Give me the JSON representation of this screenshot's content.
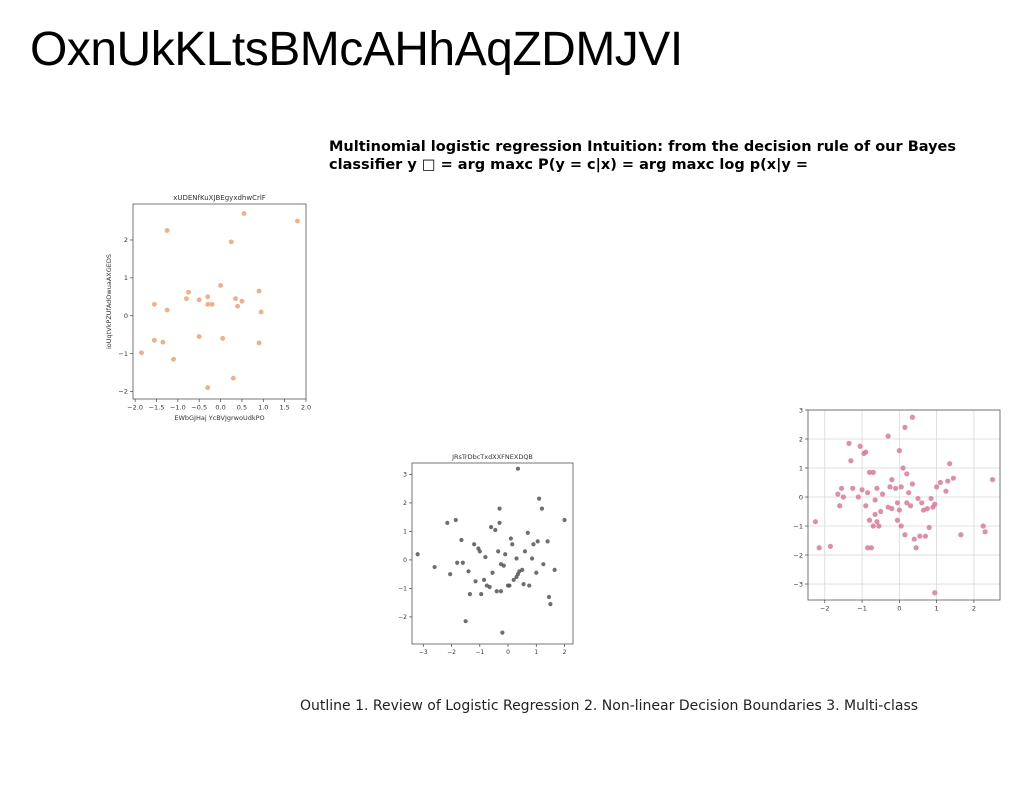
{
  "slide": {
    "title": "OxnUkKLtsBMcAHhAqZDMJVI",
    "heading": "Multinomial logistic regression Intuition: from the decision rule of our Bayes classifier y □ = arg maxc P(y = c|x) = arg maxc log p(x|y =",
    "outline": "Outline 1. Review of Logistic Regression 2. Non-linear Decision Boundaries 3. Multi-class"
  },
  "chart_data": [
    {
      "type": "scatter",
      "title": "xUDENfKuXJBEgyxdhwCrlF",
      "xlabel": "EWbGJHaj YcBVJgrwoUdkPO",
      "ylabel": "ioUqtVkPZUfAdOwuaAXGEDS",
      "color": "#f0a070",
      "xlim": [
        -2.05,
        2.0
      ],
      "ylim": [
        -2.2,
        2.95
      ],
      "xticks": [
        -2.0,
        -1.5,
        -1.0,
        -0.5,
        0.0,
        0.5,
        1.0,
        1.5,
        2.0
      ],
      "xtick_labels": [
        "−2.0",
        "−1.5",
        "−1.0",
        "−0.5",
        "0.0",
        "0.5",
        "1.0",
        "1.5",
        "2.0"
      ],
      "yticks": [
        -2,
        -1,
        0,
        1,
        2
      ],
      "ytick_labels": [
        "−2",
        "−1",
        "0",
        "1",
        "2"
      ],
      "grid": false,
      "points": [
        [
          -1.85,
          -0.98
        ],
        [
          -1.55,
          -0.65
        ],
        [
          -1.55,
          0.3
        ],
        [
          -1.35,
          -0.7
        ],
        [
          -1.25,
          2.25
        ],
        [
          -1.25,
          0.15
        ],
        [
          -1.1,
          -1.15
        ],
        [
          -0.8,
          0.45
        ],
        [
          -0.75,
          0.62
        ],
        [
          -0.5,
          -0.55
        ],
        [
          -0.5,
          0.42
        ],
        [
          -0.3,
          -1.9
        ],
        [
          -0.3,
          0.5
        ],
        [
          -0.3,
          0.3
        ],
        [
          -0.2,
          0.3
        ],
        [
          0.0,
          0.8
        ],
        [
          0.05,
          -0.6
        ],
        [
          0.25,
          1.95
        ],
        [
          0.3,
          -1.65
        ],
        [
          0.35,
          0.45
        ],
        [
          0.4,
          0.25
        ],
        [
          0.5,
          0.38
        ],
        [
          0.55,
          2.7
        ],
        [
          0.9,
          -0.72
        ],
        [
          0.9,
          0.65
        ],
        [
          0.95,
          0.1
        ],
        [
          1.8,
          2.5
        ]
      ]
    },
    {
      "type": "scatter",
      "title": "JRsTrDbcTxdXXFNEXDQB",
      "xlabel": "",
      "ylabel": "",
      "color": "#555555",
      "xlim": [
        -3.4,
        2.3
      ],
      "ylim": [
        -2.95,
        3.4
      ],
      "xticks": [
        -3,
        -2,
        -1,
        0,
        1,
        2
      ],
      "xtick_labels": [
        "−3",
        "−2",
        "−1",
        "0",
        "1",
        "2"
      ],
      "yticks": [
        -2,
        -1,
        0,
        1,
        2,
        3
      ],
      "ytick_labels": [
        "−2",
        "−1",
        "0",
        "1",
        "2",
        "3"
      ],
      "grid": false,
      "points": [
        [
          -3.2,
          0.2
        ],
        [
          -2.6,
          -0.25
        ],
        [
          -2.15,
          1.3
        ],
        [
          -2.05,
          -0.5
        ],
        [
          -1.85,
          1.4
        ],
        [
          -1.8,
          -0.1
        ],
        [
          -1.65,
          0.7
        ],
        [
          -1.6,
          -0.1
        ],
        [
          -1.5,
          -2.15
        ],
        [
          -1.4,
          -0.4
        ],
        [
          -1.35,
          -1.2
        ],
        [
          -1.2,
          0.55
        ],
        [
          -1.15,
          -0.75
        ],
        [
          -1.05,
          0.4
        ],
        [
          -1.0,
          0.3
        ],
        [
          -0.95,
          -1.2
        ],
        [
          -0.85,
          -0.7
        ],
        [
          -0.8,
          0.1
        ],
        [
          -0.75,
          -0.9
        ],
        [
          -0.65,
          -0.95
        ],
        [
          -0.6,
          1.15
        ],
        [
          -0.55,
          -0.45
        ],
        [
          -0.45,
          1.05
        ],
        [
          -0.4,
          -1.1
        ],
        [
          -0.35,
          0.3
        ],
        [
          -0.3,
          1.8
        ],
        [
          -0.3,
          1.3
        ],
        [
          -0.25,
          -1.1
        ],
        [
          -0.25,
          -0.15
        ],
        [
          -0.2,
          -2.55
        ],
        [
          -0.15,
          -0.2
        ],
        [
          -0.1,
          0.2
        ],
        [
          0.0,
          -0.9
        ],
        [
          0.05,
          -0.9
        ],
        [
          0.1,
          0.75
        ],
        [
          0.15,
          0.55
        ],
        [
          0.2,
          -0.7
        ],
        [
          0.3,
          0.05
        ],
        [
          0.3,
          -0.6
        ],
        [
          0.35,
          -0.5
        ],
        [
          0.35,
          3.2
        ],
        [
          0.4,
          -0.4
        ],
        [
          0.5,
          -0.35
        ],
        [
          0.55,
          -0.85
        ],
        [
          0.6,
          0.3
        ],
        [
          0.7,
          0.95
        ],
        [
          0.75,
          -0.9
        ],
        [
          0.85,
          0.05
        ],
        [
          0.9,
          0.55
        ],
        [
          1.0,
          -0.45
        ],
        [
          1.05,
          0.65
        ],
        [
          1.1,
          2.15
        ],
        [
          1.2,
          1.8
        ],
        [
          1.25,
          -0.15
        ],
        [
          1.4,
          0.65
        ],
        [
          1.45,
          -1.3
        ],
        [
          1.5,
          -1.55
        ],
        [
          1.65,
          -0.35
        ],
        [
          2.0,
          1.4
        ]
      ]
    },
    {
      "type": "scatter",
      "title": "",
      "xlabel": "",
      "ylabel": "",
      "color": "#d87a9a",
      "xlim": [
        -2.45,
        2.7
      ],
      "ylim": [
        -3.55,
        3.0
      ],
      "xticks": [
        -2,
        -1,
        0,
        1,
        2
      ],
      "xtick_labels": [
        "−2",
        "−1",
        "0",
        "1",
        "2"
      ],
      "yticks": [
        -3,
        -2,
        -1,
        0,
        1,
        2,
        3
      ],
      "ytick_labels": [
        "−3",
        "−2",
        "−1",
        "0",
        "1",
        "2",
        "3"
      ],
      "grid": true,
      "points": [
        [
          -2.25,
          -0.85
        ],
        [
          -2.15,
          -1.75
        ],
        [
          -1.85,
          -1.7
        ],
        [
          -1.65,
          0.1
        ],
        [
          -1.6,
          -0.3
        ],
        [
          -1.55,
          0.3
        ],
        [
          -1.5,
          0.0
        ],
        [
          -1.35,
          1.85
        ],
        [
          -1.3,
          1.25
        ],
        [
          -1.25,
          0.3
        ],
        [
          -1.1,
          0.0
        ],
        [
          -1.05,
          1.75
        ],
        [
          -1.0,
          0.25
        ],
        [
          -0.95,
          1.5
        ],
        [
          -0.9,
          1.55
        ],
        [
          -0.9,
          -0.3
        ],
        [
          -0.85,
          0.15
        ],
        [
          -0.85,
          -1.75
        ],
        [
          -0.8,
          0.85
        ],
        [
          -0.8,
          -0.8
        ],
        [
          -0.75,
          -1.75
        ],
        [
          -0.7,
          0.85
        ],
        [
          -0.7,
          -1.0
        ],
        [
          -0.65,
          -0.1
        ],
        [
          -0.65,
          -0.6
        ],
        [
          -0.6,
          0.3
        ],
        [
          -0.6,
          -0.85
        ],
        [
          -0.55,
          -1.0
        ],
        [
          -0.5,
          -0.5
        ],
        [
          -0.45,
          0.1
        ],
        [
          -0.3,
          2.1
        ],
        [
          -0.3,
          -0.35
        ],
        [
          -0.25,
          0.35
        ],
        [
          -0.2,
          0.6
        ],
        [
          -0.2,
          -0.4
        ],
        [
          -0.1,
          0.3
        ],
        [
          -0.05,
          -0.2
        ],
        [
          -0.05,
          -0.8
        ],
        [
          0.0,
          1.6
        ],
        [
          0.0,
          -0.45
        ],
        [
          0.05,
          0.35
        ],
        [
          0.05,
          -1.0
        ],
        [
          0.1,
          1.0
        ],
        [
          0.15,
          2.4
        ],
        [
          0.15,
          -1.3
        ],
        [
          0.2,
          0.8
        ],
        [
          0.2,
          -0.2
        ],
        [
          0.25,
          0.15
        ],
        [
          0.3,
          -0.3
        ],
        [
          0.35,
          2.75
        ],
        [
          0.35,
          0.45
        ],
        [
          0.4,
          -1.45
        ],
        [
          0.45,
          -1.75
        ],
        [
          0.5,
          -0.05
        ],
        [
          0.55,
          -1.35
        ],
        [
          0.6,
          -0.2
        ],
        [
          0.65,
          -0.45
        ],
        [
          0.7,
          -1.35
        ],
        [
          0.75,
          -0.4
        ],
        [
          0.8,
          -1.05
        ],
        [
          0.85,
          -0.05
        ],
        [
          0.9,
          -0.35
        ],
        [
          0.95,
          -0.25
        ],
        [
          0.95,
          -3.3
        ],
        [
          1.0,
          0.35
        ],
        [
          1.1,
          0.5
        ],
        [
          1.25,
          0.2
        ],
        [
          1.3,
          0.55
        ],
        [
          1.35,
          1.15
        ],
        [
          1.45,
          0.65
        ],
        [
          1.65,
          -1.3
        ],
        [
          2.25,
          -1.0
        ],
        [
          2.3,
          -1.2
        ],
        [
          2.5,
          0.6
        ]
      ]
    }
  ]
}
